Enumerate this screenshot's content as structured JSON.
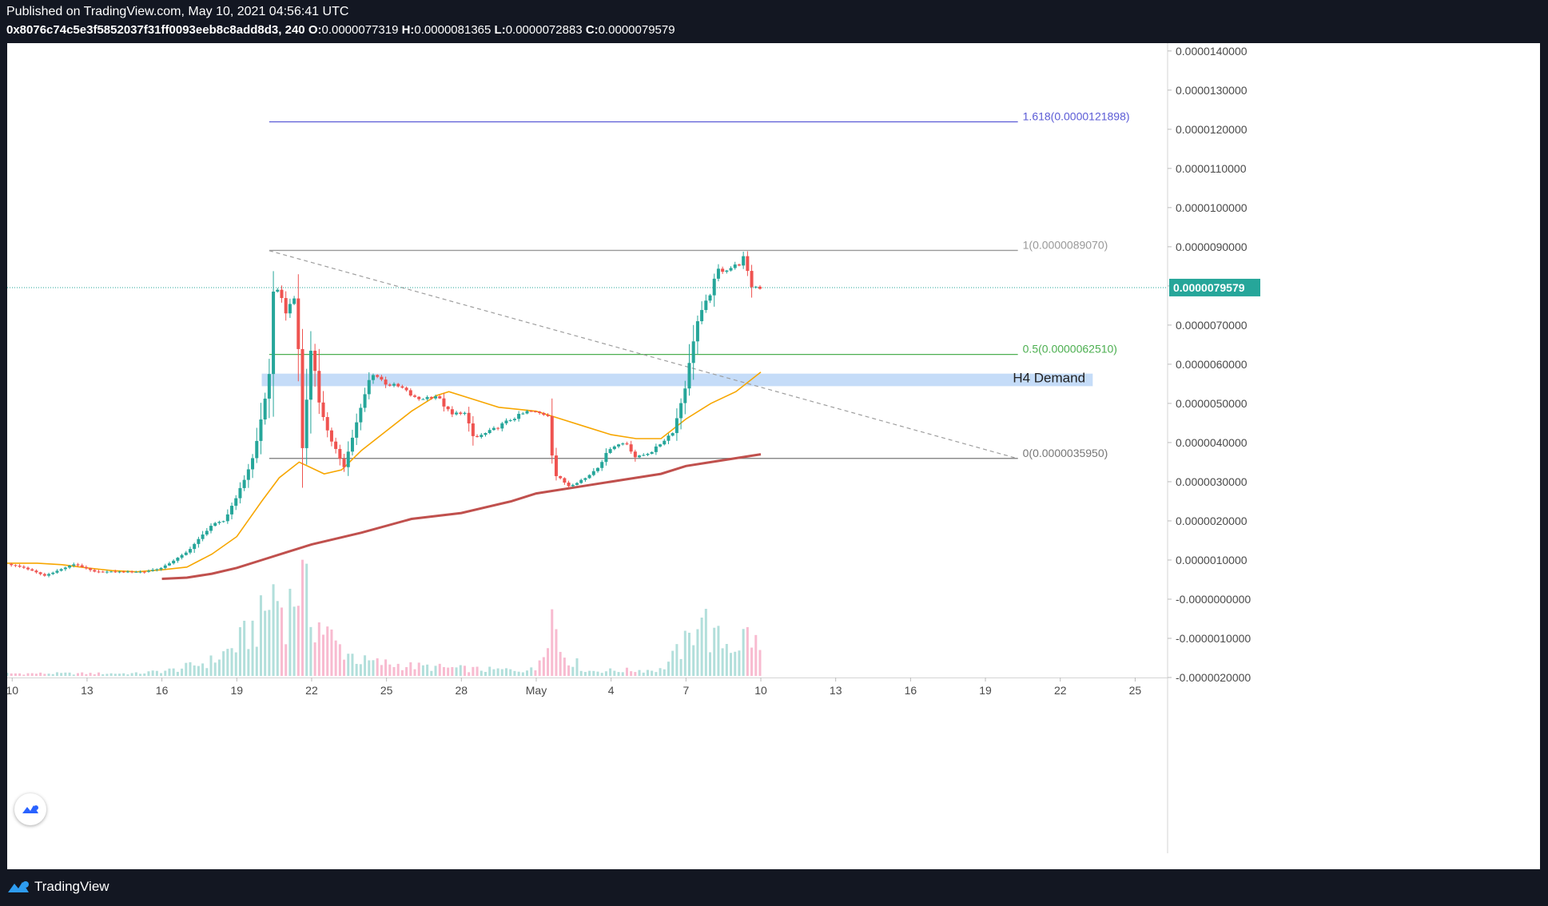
{
  "header": {
    "published": "Published on TradingView.com, May 10, 2021 04:56:41 UTC",
    "symbol": "0x8076c74c5e3f5852037f31ff0093eeb8c8add8d3, 240",
    "ohlc": {
      "o_label": "O:",
      "o": "0.0000077319",
      "h_label": "H:",
      "h": "0.0000081365",
      "l_label": "L:",
      "l": "0.0000072883",
      "c_label": "C:",
      "c": "0.0000079579"
    }
  },
  "footer": {
    "brand": "TradingView"
  },
  "icons": {
    "logo": "tradingview-logo-icon",
    "badge": "tradingview-badge-icon"
  },
  "colors": {
    "up": "#26a69a",
    "down": "#ef5350",
    "vol_up": "#b2dfdb",
    "vol_down": "#f8bbd0",
    "ema_short": "#f7a600",
    "ema_long": "#c0504d",
    "fib_1618": "#5b5bd6",
    "fib_1": "#999999",
    "fib_05": "#4caf50",
    "fib_0": "#777777",
    "price_line": "#26a69a",
    "demand_zone": "#bbd6f7"
  },
  "chart_data": {
    "type": "candlestick",
    "interval": "240",
    "price_axis": {
      "ylim": [
        -2e-06,
        1.42e-05
      ],
      "tick_labels": [
        "0.0000140000",
        "0.0000130000",
        "0.0000120000",
        "0.0000110000",
        "0.0000100000",
        "0.0000090000",
        "0.0000080000",
        "0.0000070000",
        "0.0000060000",
        "0.0000050000",
        "0.0000040000",
        "0.0000030000",
        "0.0000020000",
        "0.0000010000",
        "-0.0000000000",
        "-0.0000010000",
        "-0.0000020000"
      ],
      "tick_values": [
        1.4e-05,
        1.3e-05,
        1.2e-05,
        1.1e-05,
        1e-05,
        9e-06,
        8e-06,
        7e-06,
        6e-06,
        5e-06,
        4e-06,
        3e-06,
        2e-06,
        1e-06,
        0,
        -1e-06,
        -2e-06
      ]
    },
    "time_axis": {
      "labels": [
        "10",
        "13",
        "16",
        "19",
        "22",
        "25",
        "28",
        "May",
        "4",
        "7",
        "10",
        "13",
        "16",
        "19",
        "22",
        "25"
      ],
      "day_index": [
        0,
        3,
        6,
        9,
        12,
        15,
        18,
        21,
        24,
        27,
        30,
        33,
        36,
        39,
        42,
        45
      ],
      "xlim": [
        -0.2,
        46.3
      ]
    },
    "last_price": {
      "label": "0.0000079579",
      "value": 7.9579e-06
    },
    "fib_retracement": {
      "x_start_day": 10.3,
      "x_end_day": 40.3,
      "levels": [
        {
          "label": "1.618(0.0000121898)",
          "value": 1.21898e-05,
          "key": "fib_1618"
        },
        {
          "label": "1(0.0000089070)",
          "value": 8.907e-06,
          "key": "fib_1"
        },
        {
          "label": "0.5(0.0000062510)",
          "value": 6.251e-06,
          "key": "fib_05"
        },
        {
          "label": "0(0.0000035950)",
          "value": 3.595e-06,
          "key": "fib_0"
        }
      ]
    },
    "trendline": {
      "from": [
        10.3,
        8.9e-06
      ],
      "to": [
        40.3,
        3.59e-06
      ]
    },
    "demand_zone": {
      "label": "H4 Demand",
      "low": 5.44e-06,
      "high": 5.76e-06,
      "x_start_day": 10.0,
      "x_end_day": 43.3
    },
    "ema_short": [
      [
        -0.2,
        9.2e-07
      ],
      [
        1,
        9.2e-07
      ],
      [
        2,
        8.8e-07
      ],
      [
        3,
        8e-07
      ],
      [
        4,
        7.3e-07
      ],
      [
        5,
        7e-07
      ],
      [
        6,
        7.5e-07
      ],
      [
        7,
        8.2e-07
      ],
      [
        8,
        1.15e-06
      ],
      [
        9,
        1.6e-06
      ],
      [
        10,
        2.5e-06
      ],
      [
        10.7,
        3.1e-06
      ],
      [
        11.5,
        3.5e-06
      ],
      [
        12.5,
        3.2e-06
      ],
      [
        13.2,
        3.3e-06
      ],
      [
        14,
        3.8e-06
      ],
      [
        15,
        4.3e-06
      ],
      [
        16,
        4.8e-06
      ],
      [
        17,
        5.2e-06
      ],
      [
        17.5,
        5.3e-06
      ],
      [
        18.5,
        5.1e-06
      ],
      [
        19.5,
        4.9e-06
      ],
      [
        21,
        4.8e-06
      ],
      [
        22,
        4.6e-06
      ],
      [
        23,
        4.4e-06
      ],
      [
        24,
        4.2e-06
      ],
      [
        25,
        4.1e-06
      ],
      [
        26,
        4.1e-06
      ],
      [
        27,
        4.6e-06
      ],
      [
        28,
        5e-06
      ],
      [
        29,
        5.3e-06
      ],
      [
        30,
        5.8e-06
      ]
    ],
    "ema_long": [
      [
        6,
        5.2e-07
      ],
      [
        7,
        5.5e-07
      ],
      [
        8,
        6.5e-07
      ],
      [
        9,
        8e-07
      ],
      [
        10,
        1e-06
      ],
      [
        11,
        1.2e-06
      ],
      [
        12,
        1.4e-06
      ],
      [
        14,
        1.7e-06
      ],
      [
        16,
        2.05e-06
      ],
      [
        18,
        2.2e-06
      ],
      [
        20,
        2.5e-06
      ],
      [
        21,
        2.7e-06
      ],
      [
        23,
        2.9e-06
      ],
      [
        25,
        3.1e-06
      ],
      [
        26,
        3.2e-06
      ],
      [
        27,
        3.4e-06
      ],
      [
        28,
        3.5e-06
      ],
      [
        29,
        3.6e-06
      ],
      [
        30,
        3.7e-06
      ]
    ],
    "price_path": [
      [
        -0.2,
        9e-07
      ],
      [
        0.5,
        8e-07
      ],
      [
        1.3,
        6e-07
      ],
      [
        2.5,
        9e-07
      ],
      [
        3.3,
        7e-07
      ],
      [
        4.3,
        7e-07
      ],
      [
        5.3,
        7e-07
      ],
      [
        6,
        8e-07
      ],
      [
        7,
        1.2e-06
      ],
      [
        8,
        1.9e-06
      ],
      [
        8.5,
        2e-06
      ],
      [
        9.2,
        2.9e-06
      ],
      [
        9.7,
        3.7e-06
      ],
      [
        10.3,
        5.7e-06
      ],
      [
        10.5,
        8.2e-06
      ],
      [
        11,
        7.3e-06
      ],
      [
        11.4,
        7.8e-06
      ],
      [
        11.6,
        3.6e-06
      ],
      [
        12,
        6.6e-06
      ],
      [
        12.3,
        5e-06
      ],
      [
        12.8,
        4e-06
      ],
      [
        13.3,
        3.4e-06
      ],
      [
        13.8,
        4.5e-06
      ],
      [
        14.4,
        5.8e-06
      ],
      [
        15,
        5.5e-06
      ],
      [
        15.6,
        5.4e-06
      ],
      [
        16.2,
        5.1e-06
      ],
      [
        17,
        5.2e-06
      ],
      [
        17.6,
        4.7e-06
      ],
      [
        18.1,
        4.8e-06
      ],
      [
        18.5,
        4.1e-06
      ],
      [
        19.2,
        4.3e-06
      ],
      [
        20,
        4.6e-06
      ],
      [
        20.7,
        4.8e-06
      ],
      [
        21.5,
        4.7e-06
      ],
      [
        21.7,
        3.2e-06
      ],
      [
        22.3,
        2.9e-06
      ],
      [
        23,
        3.1e-06
      ],
      [
        23.5,
        3.4e-06
      ],
      [
        24,
        3.9e-06
      ],
      [
        24.6,
        4e-06
      ],
      [
        25,
        3.6e-06
      ],
      [
        25.7,
        3.8e-06
      ],
      [
        26.5,
        4.3e-06
      ],
      [
        27,
        5.5e-06
      ],
      [
        27.4,
        7e-06
      ],
      [
        27.9,
        7.7e-06
      ],
      [
        28.3,
        8.4e-06
      ],
      [
        29,
        8.5e-06
      ],
      [
        29.3,
        8.7e-06
      ],
      [
        29.6,
        8e-06
      ],
      [
        30.1,
        7.96e-06
      ]
    ],
    "volume_profile": [
      [
        -0.2,
        0.02
      ],
      [
        3,
        0.02
      ],
      [
        5,
        0.02
      ],
      [
        6.5,
        0.05
      ],
      [
        8,
        0.12
      ],
      [
        9,
        0.25
      ],
      [
        9.5,
        0.35
      ],
      [
        10,
        0.45
      ],
      [
        10.5,
        0.7
      ],
      [
        11,
        0.5
      ],
      [
        11.5,
        0.8
      ],
      [
        12,
        0.5
      ],
      [
        13,
        0.25
      ],
      [
        14,
        0.12
      ],
      [
        16,
        0.08
      ],
      [
        19,
        0.05
      ],
      [
        21,
        0.05
      ],
      [
        21.6,
        0.55
      ],
      [
        22,
        0.2
      ],
      [
        23,
        0.04
      ],
      [
        26,
        0.05
      ],
      [
        27.2,
        0.3
      ],
      [
        27.5,
        0.6
      ],
      [
        28,
        0.3
      ],
      [
        29,
        0.25
      ],
      [
        29.5,
        0.35
      ],
      [
        30,
        0.2
      ],
      [
        30.2,
        0.01
      ]
    ]
  }
}
